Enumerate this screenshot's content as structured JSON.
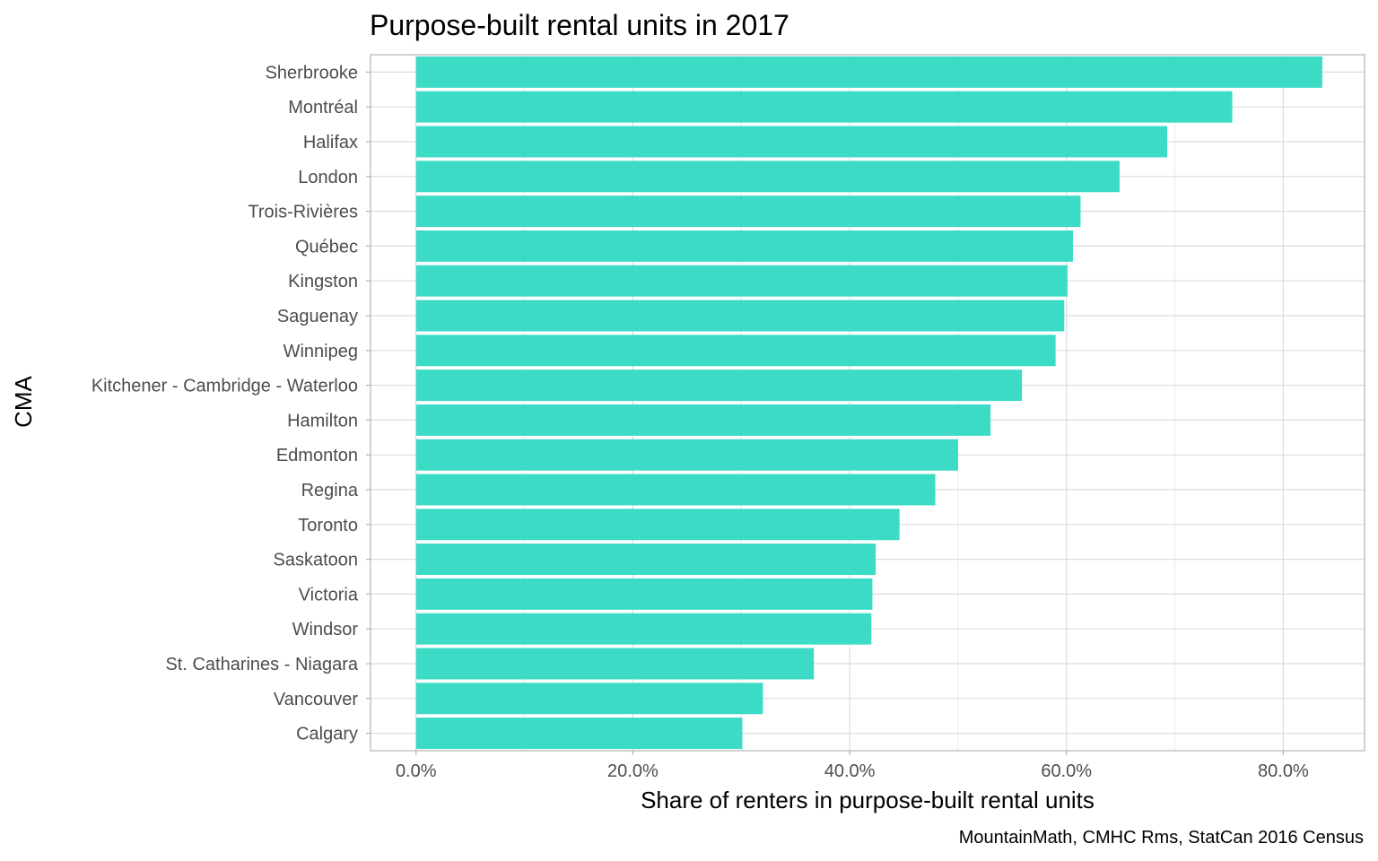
{
  "chart_data": {
    "type": "bar",
    "orientation": "horizontal",
    "title": "Purpose-built rental units in 2017",
    "xlabel": "Share of renters in purpose-built rental units",
    "ylabel": "CMA",
    "caption": "MountainMath, CMHC Rms, StatCan 2016 Census",
    "xlim": [
      -0.042,
      0.875
    ],
    "x_ticks": [
      0,
      0.2,
      0.4,
      0.6,
      0.8
    ],
    "x_tick_labels": [
      "0.0%",
      "20.0%",
      "40.0%",
      "60.0%",
      "80.0%"
    ],
    "grid": true,
    "bar_color": "#3BDBC5",
    "categories": [
      "Sherbrooke",
      "Montréal",
      "Halifax",
      "London",
      "Trois-Rivières",
      "Québec",
      "Kingston",
      "Saguenay",
      "Winnipeg",
      "Kitchener - Cambridge - Waterloo",
      "Hamilton",
      "Edmonton",
      "Regina",
      "Toronto",
      "Saskatoon",
      "Victoria",
      "Windsor",
      "St. Catharines - Niagara",
      "Vancouver",
      "Calgary"
    ],
    "values": [
      0.836,
      0.753,
      0.693,
      0.649,
      0.613,
      0.606,
      0.601,
      0.598,
      0.59,
      0.559,
      0.53,
      0.5,
      0.479,
      0.446,
      0.424,
      0.421,
      0.42,
      0.367,
      0.32,
      0.301
    ]
  }
}
